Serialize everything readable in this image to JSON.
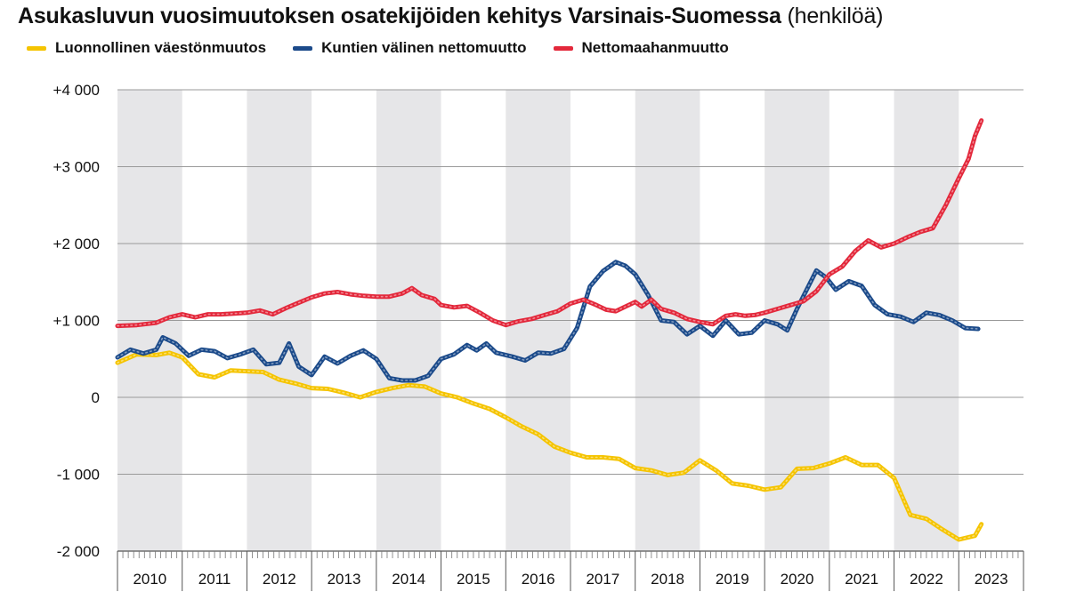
{
  "chart_data": {
    "type": "line",
    "title": "Asukasluvun vuosimuutoksen osatekijöiden kehitys Varsinais-Suomessa",
    "unit": "(henkilöä)",
    "xlabel": "",
    "ylabel": "",
    "ylim": [
      -2000,
      4000
    ],
    "yticks": [
      4000,
      3000,
      2000,
      1000,
      0,
      -1000,
      -2000
    ],
    "ytick_labels": [
      "+4 000",
      "+3 000",
      "+2 000",
      "+1 000",
      "0",
      "-1 000",
      "-2 000"
    ],
    "xlim": [
      2010,
      2024
    ],
    "years": [
      "2010",
      "2011",
      "2012",
      "2013",
      "2014",
      "2015",
      "2016",
      "2017",
      "2018",
      "2019",
      "2020",
      "2021",
      "2022",
      "2023"
    ],
    "shaded_years": [
      "2010",
      "2012",
      "2014",
      "2016",
      "2018",
      "2020",
      "2022"
    ],
    "grid": true,
    "legend_position": "top-left",
    "series": [
      {
        "name": "Luonnollinen väestönmuutos",
        "color": "#f5c400",
        "points": [
          [
            2010.0,
            450
          ],
          [
            2010.3,
            560
          ],
          [
            2010.6,
            550
          ],
          [
            2010.8,
            580
          ],
          [
            2011.0,
            520
          ],
          [
            2011.25,
            300
          ],
          [
            2011.5,
            260
          ],
          [
            2011.75,
            350
          ],
          [
            2012.0,
            340
          ],
          [
            2012.25,
            330
          ],
          [
            2012.5,
            230
          ],
          [
            2012.75,
            180
          ],
          [
            2013.0,
            120
          ],
          [
            2013.25,
            110
          ],
          [
            2013.5,
            60
          ],
          [
            2013.75,
            0
          ],
          [
            2014.0,
            70
          ],
          [
            2014.25,
            120
          ],
          [
            2014.5,
            160
          ],
          [
            2014.75,
            140
          ],
          [
            2015.0,
            50
          ],
          [
            2015.25,
            0
          ],
          [
            2015.5,
            -80
          ],
          [
            2015.75,
            -150
          ],
          [
            2016.0,
            -260
          ],
          [
            2016.25,
            -380
          ],
          [
            2016.5,
            -480
          ],
          [
            2016.75,
            -640
          ],
          [
            2017.0,
            -720
          ],
          [
            2017.25,
            -780
          ],
          [
            2017.5,
            -780
          ],
          [
            2017.75,
            -800
          ],
          [
            2018.0,
            -920
          ],
          [
            2018.25,
            -950
          ],
          [
            2018.5,
            -1010
          ],
          [
            2018.75,
            -980
          ],
          [
            2019.0,
            -820
          ],
          [
            2019.25,
            -950
          ],
          [
            2019.5,
            -1120
          ],
          [
            2019.75,
            -1150
          ],
          [
            2020.0,
            -1200
          ],
          [
            2020.25,
            -1170
          ],
          [
            2020.5,
            -930
          ],
          [
            2020.75,
            -920
          ],
          [
            2021.0,
            -860
          ],
          [
            2021.25,
            -780
          ],
          [
            2021.5,
            -880
          ],
          [
            2021.75,
            -880
          ],
          [
            2022.0,
            -1050
          ],
          [
            2022.25,
            -1530
          ],
          [
            2022.5,
            -1580
          ],
          [
            2022.75,
            -1720
          ],
          [
            2023.0,
            -1850
          ],
          [
            2023.25,
            -1800
          ],
          [
            2023.35,
            -1650
          ]
        ]
      },
      {
        "name": "Kuntien välinen nettomuutto",
        "color": "#1b4a8a",
        "points": [
          [
            2010.0,
            520
          ],
          [
            2010.2,
            620
          ],
          [
            2010.4,
            570
          ],
          [
            2010.6,
            620
          ],
          [
            2010.7,
            780
          ],
          [
            2010.9,
            700
          ],
          [
            2011.1,
            540
          ],
          [
            2011.3,
            620
          ],
          [
            2011.5,
            600
          ],
          [
            2011.7,
            510
          ],
          [
            2011.9,
            560
          ],
          [
            2012.1,
            620
          ],
          [
            2012.3,
            430
          ],
          [
            2012.5,
            450
          ],
          [
            2012.65,
            700
          ],
          [
            2012.8,
            400
          ],
          [
            2013.0,
            290
          ],
          [
            2013.2,
            530
          ],
          [
            2013.4,
            440
          ],
          [
            2013.6,
            540
          ],
          [
            2013.8,
            610
          ],
          [
            2014.0,
            500
          ],
          [
            2014.2,
            250
          ],
          [
            2014.4,
            220
          ],
          [
            2014.6,
            220
          ],
          [
            2014.8,
            280
          ],
          [
            2015.0,
            500
          ],
          [
            2015.2,
            560
          ],
          [
            2015.4,
            680
          ],
          [
            2015.55,
            610
          ],
          [
            2015.7,
            700
          ],
          [
            2015.85,
            580
          ],
          [
            2016.1,
            530
          ],
          [
            2016.3,
            480
          ],
          [
            2016.5,
            580
          ],
          [
            2016.7,
            570
          ],
          [
            2016.9,
            630
          ],
          [
            2017.1,
            900
          ],
          [
            2017.3,
            1440
          ],
          [
            2017.5,
            1640
          ],
          [
            2017.7,
            1760
          ],
          [
            2017.85,
            1710
          ],
          [
            2018.0,
            1600
          ],
          [
            2018.2,
            1330
          ],
          [
            2018.4,
            1000
          ],
          [
            2018.6,
            980
          ],
          [
            2018.8,
            820
          ],
          [
            2019.0,
            930
          ],
          [
            2019.2,
            800
          ],
          [
            2019.4,
            1000
          ],
          [
            2019.6,
            820
          ],
          [
            2019.8,
            840
          ],
          [
            2020.0,
            1000
          ],
          [
            2020.2,
            950
          ],
          [
            2020.35,
            870
          ],
          [
            2020.5,
            1150
          ],
          [
            2020.65,
            1400
          ],
          [
            2020.8,
            1650
          ],
          [
            2020.95,
            1560
          ],
          [
            2021.1,
            1400
          ],
          [
            2021.3,
            1510
          ],
          [
            2021.5,
            1450
          ],
          [
            2021.7,
            1200
          ],
          [
            2021.9,
            1080
          ],
          [
            2022.1,
            1050
          ],
          [
            2022.3,
            980
          ],
          [
            2022.5,
            1100
          ],
          [
            2022.7,
            1070
          ],
          [
            2022.9,
            1000
          ],
          [
            2023.1,
            900
          ],
          [
            2023.3,
            890
          ]
        ]
      },
      {
        "name": "Nettomaahanmuutto",
        "color": "#e3283b",
        "points": [
          [
            2010.0,
            930
          ],
          [
            2010.3,
            940
          ],
          [
            2010.6,
            970
          ],
          [
            2010.8,
            1040
          ],
          [
            2011.0,
            1080
          ],
          [
            2011.2,
            1040
          ],
          [
            2011.4,
            1080
          ],
          [
            2011.6,
            1080
          ],
          [
            2011.8,
            1090
          ],
          [
            2012.0,
            1100
          ],
          [
            2012.2,
            1130
          ],
          [
            2012.4,
            1080
          ],
          [
            2012.6,
            1160
          ],
          [
            2012.8,
            1230
          ],
          [
            2013.0,
            1300
          ],
          [
            2013.2,
            1350
          ],
          [
            2013.4,
            1370
          ],
          [
            2013.6,
            1340
          ],
          [
            2013.8,
            1320
          ],
          [
            2014.0,
            1310
          ],
          [
            2014.2,
            1310
          ],
          [
            2014.4,
            1350
          ],
          [
            2014.55,
            1420
          ],
          [
            2014.7,
            1330
          ],
          [
            2014.9,
            1280
          ],
          [
            2015.0,
            1200
          ],
          [
            2015.2,
            1170
          ],
          [
            2015.4,
            1190
          ],
          [
            2015.6,
            1100
          ],
          [
            2015.8,
            1000
          ],
          [
            2016.0,
            940
          ],
          [
            2016.2,
            990
          ],
          [
            2016.4,
            1020
          ],
          [
            2016.6,
            1070
          ],
          [
            2016.8,
            1120
          ],
          [
            2017.0,
            1220
          ],
          [
            2017.2,
            1270
          ],
          [
            2017.4,
            1200
          ],
          [
            2017.55,
            1140
          ],
          [
            2017.7,
            1120
          ],
          [
            2017.85,
            1180
          ],
          [
            2018.0,
            1240
          ],
          [
            2018.1,
            1180
          ],
          [
            2018.25,
            1270
          ],
          [
            2018.4,
            1150
          ],
          [
            2018.6,
            1100
          ],
          [
            2018.8,
            1020
          ],
          [
            2019.0,
            980
          ],
          [
            2019.2,
            950
          ],
          [
            2019.4,
            1060
          ],
          [
            2019.55,
            1080
          ],
          [
            2019.7,
            1060
          ],
          [
            2019.85,
            1070
          ],
          [
            2020.0,
            1100
          ],
          [
            2020.2,
            1150
          ],
          [
            2020.4,
            1200
          ],
          [
            2020.6,
            1250
          ],
          [
            2020.8,
            1380
          ],
          [
            2021.0,
            1600
          ],
          [
            2021.2,
            1700
          ],
          [
            2021.4,
            1900
          ],
          [
            2021.6,
            2040
          ],
          [
            2021.8,
            1950
          ],
          [
            2022.0,
            2000
          ],
          [
            2022.2,
            2080
          ],
          [
            2022.4,
            2150
          ],
          [
            2022.6,
            2200
          ],
          [
            2022.8,
            2500
          ],
          [
            2023.0,
            2850
          ],
          [
            2023.15,
            3100
          ],
          [
            2023.25,
            3400
          ],
          [
            2023.35,
            3600
          ]
        ]
      }
    ]
  }
}
